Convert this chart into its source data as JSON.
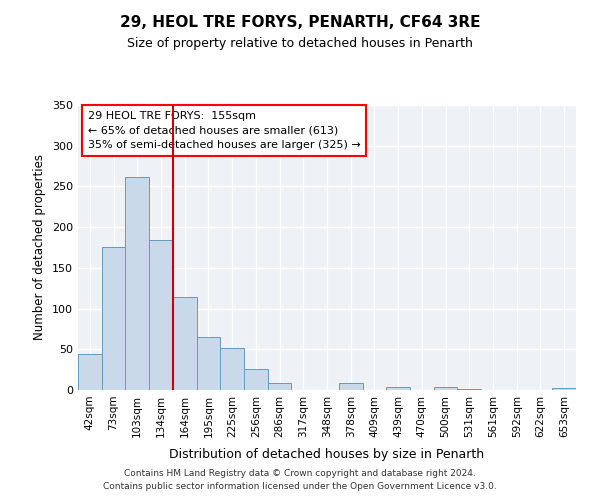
{
  "title": "29, HEOL TRE FORYS, PENARTH, CF64 3RE",
  "subtitle": "Size of property relative to detached houses in Penarth",
  "xlabel": "Distribution of detached houses by size in Penarth",
  "ylabel": "Number of detached properties",
  "bar_labels": [
    "42sqm",
    "73sqm",
    "103sqm",
    "134sqm",
    "164sqm",
    "195sqm",
    "225sqm",
    "256sqm",
    "286sqm",
    "317sqm",
    "348sqm",
    "378sqm",
    "409sqm",
    "439sqm",
    "470sqm",
    "500sqm",
    "531sqm",
    "561sqm",
    "592sqm",
    "622sqm",
    "653sqm"
  ],
  "bar_values": [
    44,
    176,
    262,
    184,
    114,
    65,
    52,
    26,
    8,
    0,
    0,
    9,
    0,
    4,
    0,
    4,
    1,
    0,
    0,
    0,
    3
  ],
  "bar_color": "#c9d9ea",
  "bar_edge_color": "#6699bb",
  "vline_color": "#cc0000",
  "vline_bar_index": 4,
  "ylim": [
    0,
    350
  ],
  "yticks": [
    0,
    50,
    100,
    150,
    200,
    250,
    300,
    350
  ],
  "annotation_title": "29 HEOL TRE FORYS:  155sqm",
  "annotation_line1": "← 65% of detached houses are smaller (613)",
  "annotation_line2": "35% of semi-detached houses are larger (325) →",
  "footnote1": "Contains HM Land Registry data © Crown copyright and database right 2024.",
  "footnote2": "Contains public sector information licensed under the Open Government Licence v3.0.",
  "background_color": "#eef2f7",
  "fig_width": 6.0,
  "fig_height": 5.0,
  "dpi": 100
}
